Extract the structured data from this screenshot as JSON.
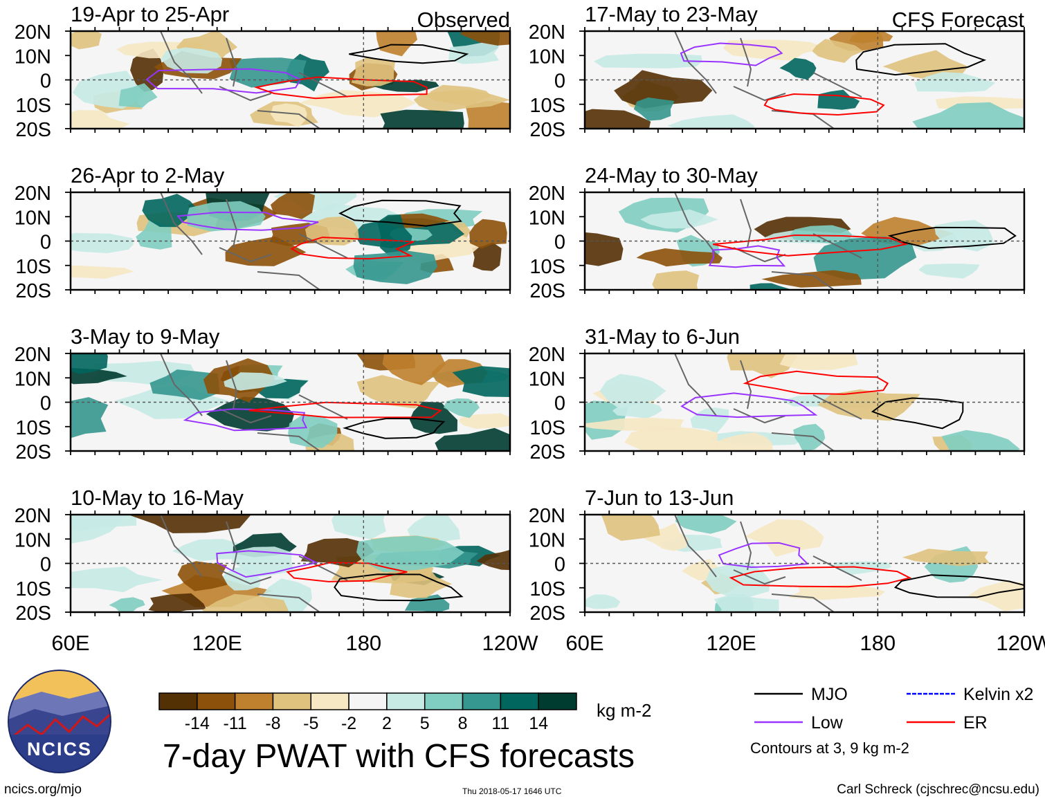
{
  "figure_title": "7-day PWAT with CFS forecasts",
  "source_url": "ncics.org/mjo",
  "timestamp": "Thu 2018-05-17 1646 UTC",
  "credit": "Carl Schreck (cjschrec@ncsu.edu)",
  "logo_text": "NCICS",
  "units": "kg m-2",
  "contour_note": "Contours at 3, 9 kg m-2",
  "column_labels": {
    "observed": "Observed",
    "forecast": "CFS Forecast"
  },
  "chart_data": {
    "type": "heatmap",
    "variable": "7-day precipitable water anomaly",
    "panels": [
      {
        "title": "19-Apr to 25-Apr",
        "column": "Observed"
      },
      {
        "title": "26-Apr to 2-May",
        "column": "Observed"
      },
      {
        "title": "3-May to 9-May",
        "column": "Observed"
      },
      {
        "title": "10-May to 16-May",
        "column": "Observed"
      },
      {
        "title": "17-May to 23-May",
        "column": "CFS Forecast"
      },
      {
        "title": "24-May to 30-May",
        "column": "CFS Forecast"
      },
      {
        "title": "31-May to 6-Jun",
        "column": "CFS Forecast"
      },
      {
        "title": "7-Jun to 13-Jun",
        "column": "CFS Forecast"
      }
    ],
    "x_ticks": [
      "60E",
      "120E",
      "180",
      "120W"
    ],
    "x_range": [
      60,
      240
    ],
    "y_ticks": [
      "20N",
      "10N",
      "0",
      "10S",
      "20S"
    ],
    "y_range": [
      -20,
      20
    ],
    "colorbar": {
      "tick_labels": [
        "-14",
        "-11",
        "-8",
        "-5",
        "-2",
        "2",
        "5",
        "8",
        "11",
        "14"
      ],
      "colors": [
        "#543005",
        "#8c510a",
        "#bf812d",
        "#dfc27d",
        "#f6e8c3",
        "#f5f5f5",
        "#c7eae5",
        "#80cdc1",
        "#35978f",
        "#01665e",
        "#003c30"
      ]
    },
    "legend": [
      {
        "label": "MJO",
        "color": "#000000"
      },
      {
        "label": "Kelvin x2",
        "color": "#0000ff"
      },
      {
        "label": "Low",
        "color": "#9933ff"
      },
      {
        "label": "ER",
        "color": "#ff0000"
      }
    ]
  }
}
